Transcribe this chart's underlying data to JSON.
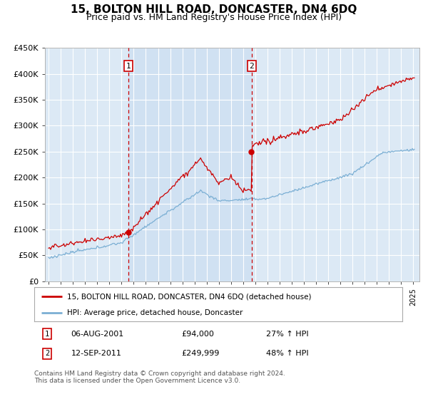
{
  "title": "15, BOLTON HILL ROAD, DONCASTER, DN4 6DQ",
  "subtitle": "Price paid vs. HM Land Registry's House Price Index (HPI)",
  "title_fontsize": 11,
  "subtitle_fontsize": 9,
  "ylim": [
    0,
    450000
  ],
  "yticks": [
    0,
    50000,
    100000,
    150000,
    200000,
    250000,
    300000,
    350000,
    400000,
    450000
  ],
  "ytick_labels": [
    "£0",
    "£50K",
    "£100K",
    "£150K",
    "£200K",
    "£250K",
    "£300K",
    "£350K",
    "£400K",
    "£450K"
  ],
  "xlim_start": 1994.7,
  "xlim_end": 2025.5,
  "background_color": "#dce9f5",
  "fig_bg_color": "#ffffff",
  "grid_color": "#ffffff",
  "line1_color": "#cc0000",
  "line2_color": "#7bafd4",
  "line1_label": "15, BOLTON HILL ROAD, DONCASTER, DN4 6DQ (detached house)",
  "line2_label": "HPI: Average price, detached house, Doncaster",
  "sale1_year": 2001.58,
  "sale1_price": 94000,
  "sale1_label": "1",
  "sale1_date": "06-AUG-2001",
  "sale1_price_str": "£94,000",
  "sale1_hpi": "27% ↑ HPI",
  "sale2_year": 2011.7,
  "sale2_price": 249999,
  "sale2_label": "2",
  "sale2_date": "12-SEP-2011",
  "sale2_price_str": "£249,999",
  "sale2_hpi": "48% ↑ HPI",
  "footer_text": "Contains HM Land Registry data © Crown copyright and database right 2024.\nThis data is licensed under the Open Government Licence v3.0.",
  "marker_box_color": "#cc0000",
  "shade_color": "#c8ddf0"
}
